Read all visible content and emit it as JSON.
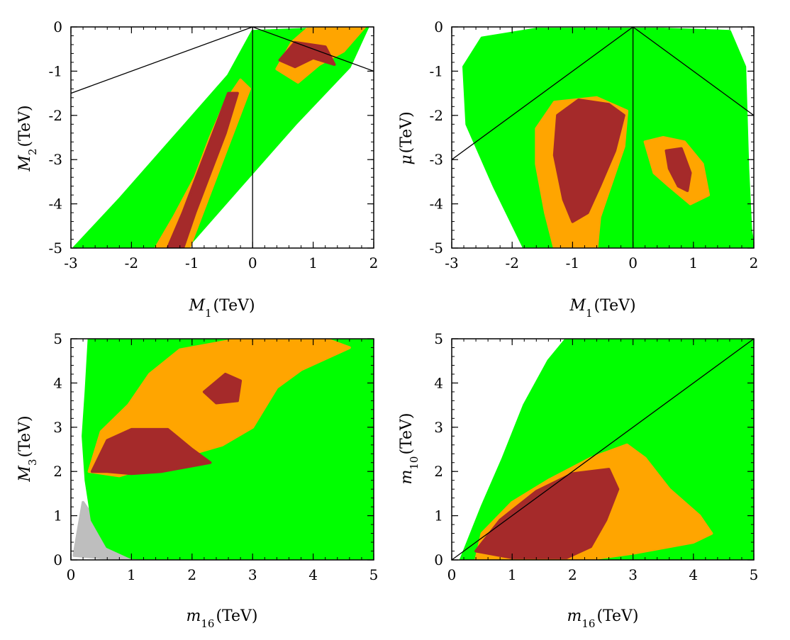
{
  "figure_title": "",
  "colors": {
    "green": "#00ff00",
    "orange": "#ffa500",
    "brown": "#a52a2a",
    "grey": "#bebebe",
    "frame": "#000000",
    "line": "#000000"
  },
  "chart_data": [
    {
      "id": "m1_m2",
      "type": "scatter",
      "title": "",
      "xlabel": {
        "sym": "M",
        "sub": "1",
        "unit": "(TeV)"
      },
      "ylabel": {
        "sym": "M",
        "sub": "2",
        "unit": "(TeV)"
      },
      "xlim": [
        -3,
        2
      ],
      "ylim": [
        -5,
        0
      ],
      "xticks": [
        -3,
        -2,
        -1,
        0,
        1,
        2
      ],
      "yticks": [
        0,
        -1,
        -2,
        -3,
        -4,
        -5
      ],
      "regions": [
        {
          "name": "green",
          "color": "green",
          "points": [
            [
              -2.95,
              -5
            ],
            [
              -2.2,
              -3.9
            ],
            [
              -1.3,
              -2.5
            ],
            [
              -0.4,
              -1.1
            ],
            [
              0,
              -0.1
            ],
            [
              1.9,
              0
            ],
            [
              1.6,
              -0.9
            ],
            [
              0.7,
              -2.2
            ],
            [
              -0.2,
              -3.6
            ],
            [
              -1.1,
              -5
            ]
          ]
        },
        {
          "name": "orange-band",
          "color": "orange",
          "points": [
            [
              -1.6,
              -5
            ],
            [
              -1.3,
              -4.3
            ],
            [
              -0.95,
              -3.4
            ],
            [
              -0.7,
              -2.5
            ],
            [
              -0.45,
              -1.7
            ],
            [
              -0.2,
              -1.2
            ],
            [
              -0.05,
              -1.4
            ],
            [
              -0.3,
              -2.3
            ],
            [
              -0.55,
              -3.2
            ],
            [
              -0.8,
              -4.1
            ],
            [
              -1.05,
              -5
            ]
          ]
        },
        {
          "name": "orange-top",
          "color": "orange",
          "points": [
            [
              0.4,
              -0.95
            ],
            [
              0.65,
              -0.35
            ],
            [
              0.9,
              -0.05
            ],
            [
              1.85,
              0
            ],
            [
              1.5,
              -0.55
            ],
            [
              1.1,
              -0.85
            ],
            [
              0.75,
              -1.25
            ]
          ]
        },
        {
          "name": "brown-band",
          "color": "brown",
          "points": [
            [
              -1.4,
              -5
            ],
            [
              -1.15,
              -4.2
            ],
            [
              -0.9,
              -3.3
            ],
            [
              -0.65,
              -2.4
            ],
            [
              -0.4,
              -1.5
            ],
            [
              -0.25,
              -1.5
            ],
            [
              -0.45,
              -2.4
            ],
            [
              -0.7,
              -3.3
            ],
            [
              -0.95,
              -4.2
            ],
            [
              -1.15,
              -5
            ]
          ]
        },
        {
          "name": "brown-top",
          "color": "brown",
          "points": [
            [
              0.45,
              -0.75
            ],
            [
              0.7,
              -0.35
            ],
            [
              1.2,
              -0.45
            ],
            [
              1.35,
              -0.85
            ],
            [
              1.0,
              -0.7
            ],
            [
              0.7,
              -0.9
            ]
          ]
        }
      ],
      "lines": [
        {
          "points": [
            [
              -3,
              -1.5
            ],
            [
              0,
              0
            ]
          ]
        },
        {
          "points": [
            [
              0,
              0
            ],
            [
              2,
              -1.0
            ]
          ]
        },
        {
          "points": [
            [
              0,
              0
            ],
            [
              0,
              -5
            ]
          ]
        }
      ]
    },
    {
      "id": "m1_mu",
      "type": "scatter",
      "title": "",
      "xlabel": {
        "sym": "M",
        "sub": "1",
        "unit": "(TeV)"
      },
      "ylabel": {
        "sym": "μ",
        "sub": "",
        "unit": "(TeV)"
      },
      "xlim": [
        -3,
        2
      ],
      "ylim": [
        -5,
        0
      ],
      "xticks": [
        -3,
        -2,
        -1,
        0,
        1,
        2
      ],
      "yticks": [
        0,
        -1,
        -2,
        -3,
        -4,
        -5
      ],
      "regions": [
        {
          "name": "green",
          "color": "green",
          "points": [
            [
              -2.8,
              -0.9
            ],
            [
              -2.5,
              -0.25
            ],
            [
              -1.6,
              -0.05
            ],
            [
              0.5,
              -0.05
            ],
            [
              1.6,
              -0.1
            ],
            [
              1.85,
              -0.9
            ],
            [
              1.9,
              -3.2
            ],
            [
              1.95,
              -4.6
            ],
            [
              2,
              -5
            ],
            [
              -1.8,
              -5
            ],
            [
              -2.3,
              -3.6
            ],
            [
              -2.75,
              -2.2
            ]
          ]
        },
        {
          "name": "orange-left",
          "color": "orange",
          "points": [
            [
              -1.6,
              -2.3
            ],
            [
              -1.3,
              -1.7
            ],
            [
              -0.6,
              -1.6
            ],
            [
              -0.1,
              -1.9
            ],
            [
              -0.15,
              -2.7
            ],
            [
              -0.35,
              -3.5
            ],
            [
              -0.55,
              -4.3
            ],
            [
              -0.6,
              -5
            ],
            [
              -1.3,
              -5
            ],
            [
              -1.45,
              -4.2
            ],
            [
              -1.6,
              -3.1
            ]
          ]
        },
        {
          "name": "orange-right",
          "color": "orange",
          "points": [
            [
              0.2,
              -2.6
            ],
            [
              0.5,
              -2.5
            ],
            [
              0.85,
              -2.6
            ],
            [
              1.15,
              -3.1
            ],
            [
              1.25,
              -3.8
            ],
            [
              0.95,
              -4.0
            ],
            [
              0.6,
              -3.6
            ],
            [
              0.35,
              -3.3
            ]
          ]
        },
        {
          "name": "brown-left",
          "color": "brown",
          "points": [
            [
              -1.25,
              -2.0
            ],
            [
              -0.9,
              -1.65
            ],
            [
              -0.4,
              -1.75
            ],
            [
              -0.15,
              -2.0
            ],
            [
              -0.3,
              -2.8
            ],
            [
              -0.55,
              -3.6
            ],
            [
              -0.75,
              -4.2
            ],
            [
              -1.0,
              -4.4
            ],
            [
              -1.15,
              -3.9
            ],
            [
              -1.3,
              -2.9
            ]
          ]
        },
        {
          "name": "brown-right",
          "color": "brown",
          "points": [
            [
              0.55,
              -2.8
            ],
            [
              0.8,
              -2.75
            ],
            [
              0.95,
              -3.3
            ],
            [
              0.9,
              -3.7
            ],
            [
              0.75,
              -3.6
            ],
            [
              0.6,
              -3.2
            ]
          ]
        }
      ],
      "lines": [
        {
          "points": [
            [
              -3,
              -3.0
            ],
            [
              0,
              0
            ]
          ]
        },
        {
          "points": [
            [
              0,
              0
            ],
            [
              2,
              -2.0
            ]
          ]
        },
        {
          "points": [
            [
              0,
              0
            ],
            [
              0,
              -5
            ]
          ]
        }
      ]
    },
    {
      "id": "m16_m3",
      "type": "scatter",
      "title": "",
      "xlabel": {
        "sym": "m",
        "sub": "16",
        "unit": "(TeV)"
      },
      "ylabel": {
        "sym": "M",
        "sub": "3",
        "unit": "(TeV)"
      },
      "xlim": [
        0,
        5
      ],
      "ylim": [
        0,
        5
      ],
      "xticks": [
        0,
        1,
        2,
        3,
        4,
        5
      ],
      "yticks": [
        0,
        1,
        2,
        3,
        4,
        5
      ],
      "regions": [
        {
          "name": "grey",
          "color": "grey",
          "points": [
            [
              0.05,
              0.1
            ],
            [
              0.1,
              0.5
            ],
            [
              0.2,
              1.3
            ],
            [
              0.4,
              0.9
            ],
            [
              0.8,
              0.2
            ],
            [
              1.6,
              0.02
            ],
            [
              0.5,
              0.05
            ]
          ]
        },
        {
          "name": "green",
          "color": "green",
          "points": [
            [
              0.3,
              5
            ],
            [
              5,
              5
            ],
            [
              5,
              0
            ],
            [
              2.0,
              0
            ],
            [
              1.0,
              0.05
            ],
            [
              0.6,
              0.3
            ],
            [
              0.35,
              0.9
            ],
            [
              0.25,
              1.8
            ],
            [
              0.2,
              2.8
            ],
            [
              0.25,
              3.8
            ]
          ]
        },
        {
          "name": "orange",
          "color": "orange",
          "points": [
            [
              0.3,
              2.0
            ],
            [
              0.5,
              2.9
            ],
            [
              0.95,
              3.5
            ],
            [
              1.3,
              4.2
            ],
            [
              1.8,
              4.75
            ],
            [
              2.8,
              5
            ],
            [
              4.2,
              5
            ],
            [
              4.6,
              4.8
            ],
            [
              3.8,
              4.3
            ],
            [
              3.4,
              3.9
            ],
            [
              3.0,
              3.0
            ],
            [
              2.5,
              2.6
            ],
            [
              1.5,
              2.2
            ],
            [
              0.8,
              1.9
            ]
          ]
        },
        {
          "name": "brown-lower",
          "color": "brown",
          "points": [
            [
              0.35,
              2.0
            ],
            [
              0.6,
              2.7
            ],
            [
              1.0,
              2.95
            ],
            [
              1.6,
              2.95
            ],
            [
              2.0,
              2.5
            ],
            [
              2.3,
              2.2
            ],
            [
              1.5,
              2.0
            ],
            [
              1.0,
              1.95
            ],
            [
              0.6,
              2.0
            ]
          ]
        },
        {
          "name": "brown-upper",
          "color": "brown",
          "points": [
            [
              2.2,
              3.8
            ],
            [
              2.55,
              4.2
            ],
            [
              2.8,
              4.05
            ],
            [
              2.75,
              3.6
            ],
            [
              2.4,
              3.55
            ]
          ]
        }
      ],
      "lines": []
    },
    {
      "id": "m16_m10",
      "type": "scatter",
      "title": "",
      "xlabel": {
        "sym": "m",
        "sub": "16",
        "unit": "(TeV)"
      },
      "ylabel": {
        "sym": "m",
        "sub": "10",
        "unit": "(TeV)"
      },
      "xlim": [
        0,
        5
      ],
      "ylim": [
        0,
        5
      ],
      "xticks": [
        0,
        1,
        2,
        3,
        4,
        5
      ],
      "yticks": [
        0,
        1,
        2,
        3,
        4,
        5
      ],
      "regions": [
        {
          "name": "green",
          "color": "green",
          "points": [
            [
              0.15,
              0
            ],
            [
              0.5,
              1.2
            ],
            [
              0.85,
              2.3
            ],
            [
              1.2,
              3.5
            ],
            [
              1.6,
              4.5
            ],
            [
              1.9,
              5
            ],
            [
              5,
              5
            ],
            [
              5,
              0
            ]
          ]
        },
        {
          "name": "orange",
          "color": "orange",
          "points": [
            [
              0.4,
              0
            ],
            [
              0.5,
              0.6
            ],
            [
              1.0,
              1.3
            ],
            [
              1.6,
              1.8
            ],
            [
              2.3,
              2.3
            ],
            [
              2.9,
              2.6
            ],
            [
              3.2,
              2.3
            ],
            [
              3.6,
              1.6
            ],
            [
              4.1,
              1.0
            ],
            [
              4.3,
              0.6
            ],
            [
              4.0,
              0.4
            ],
            [
              3.0,
              0.15
            ],
            [
              2.2,
              0
            ]
          ]
        },
        {
          "name": "brown",
          "color": "brown",
          "points": [
            [
              0.4,
              0.2
            ],
            [
              0.8,
              0.9
            ],
            [
              1.4,
              1.55
            ],
            [
              2.0,
              1.95
            ],
            [
              2.6,
              2.05
            ],
            [
              2.75,
              1.6
            ],
            [
              2.55,
              0.9
            ],
            [
              2.3,
              0.3
            ],
            [
              1.9,
              0.05
            ],
            [
              1.0,
              0.05
            ]
          ]
        }
      ],
      "lines": [
        {
          "points": [
            [
              0,
              0
            ],
            [
              5,
              5
            ]
          ]
        }
      ]
    }
  ]
}
